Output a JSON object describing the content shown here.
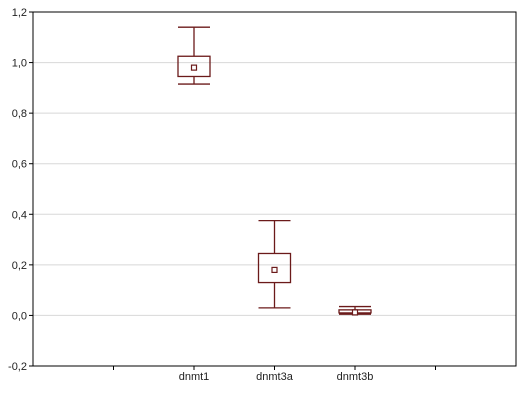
{
  "chart_data": {
    "type": "box",
    "title": "",
    "xlabel": "",
    "ylabel": "",
    "ylim": [
      -0.2,
      1.2
    ],
    "yticks": [
      -0.2,
      0.0,
      0.2,
      0.4,
      0.6,
      0.8,
      1.0,
      1.2
    ],
    "ytick_labels": [
      "-0,2",
      "0,0",
      "0,2",
      "0,4",
      "0,6",
      "0,8",
      "1,0",
      "1,2"
    ],
    "grid": "horizontal",
    "categories": [
      "dnmt1",
      "dnmt3a",
      "dnmt3b"
    ],
    "boxes": [
      {
        "category": "dnmt1",
        "whisker_low": 0.915,
        "box_low": 0.945,
        "median": 0.98,
        "box_high": 1.025,
        "whisker_high": 1.14
      },
      {
        "category": "dnmt3a",
        "whisker_low": 0.03,
        "box_low": 0.13,
        "median": 0.18,
        "box_high": 0.245,
        "whisker_high": 0.375
      },
      {
        "category": "dnmt3b",
        "whisker_low": 0.005,
        "box_low": 0.01,
        "median": 0.012,
        "box_high": 0.022,
        "whisker_high": 0.035
      }
    ],
    "colors": {
      "box": "#6b1a1a",
      "grid": "#d8d8d8",
      "axis": "#000000"
    }
  }
}
